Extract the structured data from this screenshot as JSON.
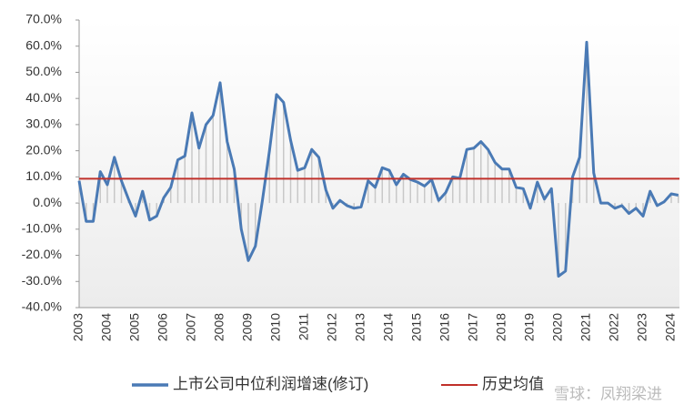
{
  "chart_data": {
    "type": "line",
    "categories": [
      "2003",
      null,
      null,
      null,
      "2004",
      null,
      null,
      null,
      "2005",
      null,
      null,
      null,
      "2006",
      null,
      null,
      null,
      "2007",
      null,
      null,
      null,
      "2008",
      null,
      null,
      null,
      "2009",
      null,
      null,
      null,
      "2010",
      null,
      null,
      null,
      "2011",
      null,
      null,
      null,
      "2012",
      null,
      null,
      null,
      "2013",
      null,
      null,
      null,
      "2014",
      null,
      null,
      null,
      "2015",
      null,
      null,
      null,
      "2016",
      null,
      null,
      null,
      "2017",
      null,
      null,
      null,
      "2018",
      null,
      null,
      null,
      "2019",
      null,
      null,
      null,
      "2020",
      null,
      null,
      null,
      "2021",
      null,
      null,
      null,
      "2022",
      null,
      null,
      null,
      "2023",
      null,
      null,
      null,
      "2024",
      null
    ],
    "series": [
      {
        "name": "上市公司中位利润增速(修订)",
        "color": "#4a7ab5",
        "values": [
          8.5,
          -7,
          -7,
          12,
          7,
          17.5,
          8.5,
          1.5,
          -5,
          4.5,
          -6.5,
          -5,
          2,
          6,
          16.5,
          18,
          34.5,
          21,
          30,
          33.5,
          46,
          23.5,
          13,
          -10,
          -22,
          -16.5,
          1,
          20,
          41.5,
          38.5,
          24,
          12.5,
          13.5,
          20.5,
          17.5,
          5,
          -2,
          1,
          -1,
          -2,
          -1.5,
          8.5,
          6,
          13.5,
          12.5,
          7,
          11,
          9,
          8,
          6.5,
          9,
          1,
          4,
          10,
          9.5,
          20.5,
          21,
          23.5,
          20.5,
          15.5,
          13,
          13,
          6,
          5.5,
          -2,
          8,
          1.5,
          5.5,
          -28,
          -26,
          10,
          17.5,
          61.5,
          11.5,
          0,
          0,
          -2,
          -1,
          -4,
          -2,
          -5,
          4.5,
          -1,
          0.5,
          3.5,
          3
        ]
      }
    ],
    "mean_line": {
      "name": "历史均值",
      "color": "#c0302a",
      "value": 9.3
    },
    "ylim": [
      -40,
      70
    ],
    "yticks": [
      {
        "value": -40,
        "label": "-40.0%"
      },
      {
        "value": -30,
        "label": "-30.0%"
      },
      {
        "value": -20,
        "label": "-20.0%"
      },
      {
        "value": -10,
        "label": "-10.0%"
      },
      {
        "value": 0,
        "label": "0.0%"
      },
      {
        "value": 10,
        "label": "10.0%"
      },
      {
        "value": 20,
        "label": "20.0%"
      },
      {
        "value": 30,
        "label": "30.0%"
      },
      {
        "value": 40,
        "label": "40.0%"
      },
      {
        "value": 50,
        "label": "50.0%"
      },
      {
        "value": 60,
        "label": "60.0%"
      },
      {
        "value": 70,
        "label": "70.0%"
      }
    ],
    "droplines": true,
    "watermark": "雪球：凤翔梁进"
  }
}
